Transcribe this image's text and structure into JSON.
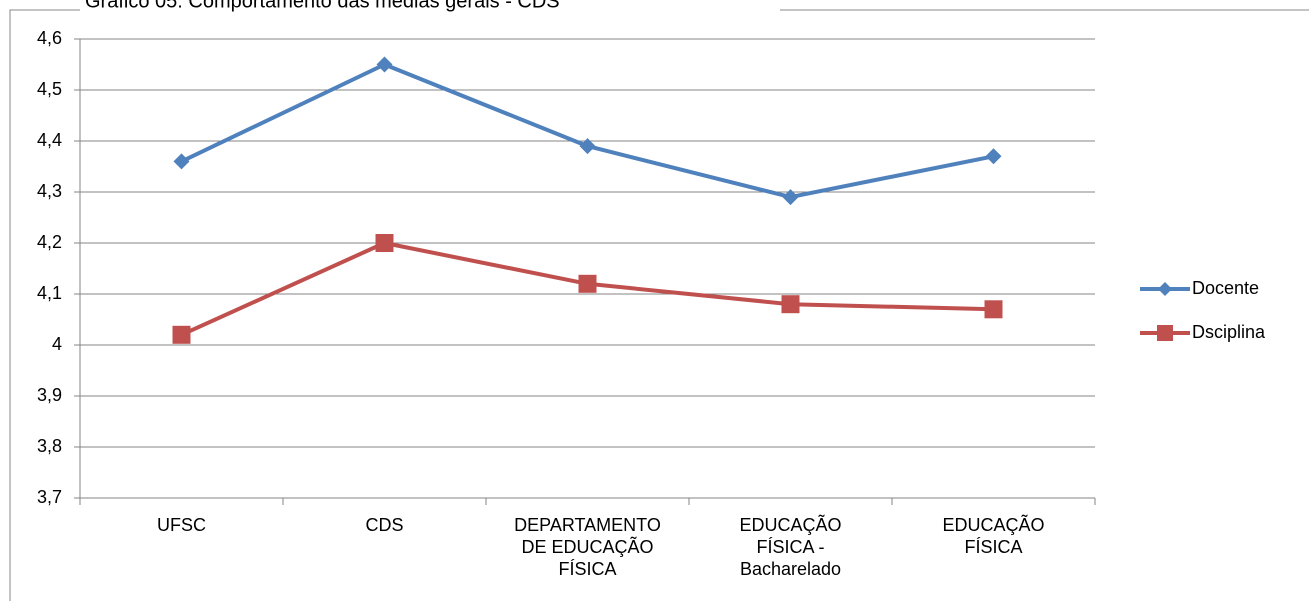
{
  "chart_data": {
    "type": "line",
    "title": "Gráfico 05: Comportamento das médias gerais - CDS",
    "categories": [
      "UFSC",
      "CDS",
      "DEPARTAMENTO DE EDUCAÇÃO FÍSICA",
      "EDUCAÇÃO FÍSICA - Bacharelado",
      "EDUCAÇÃO FÍSICA"
    ],
    "series": [
      {
        "name": "Docente",
        "color": "#4f81bd",
        "marker": "diamond",
        "values": [
          4.36,
          4.55,
          4.39,
          4.29,
          4.37
        ]
      },
      {
        "name": "Dsciplina",
        "color": "#c0504d",
        "marker": "square",
        "values": [
          4.02,
          4.2,
          4.12,
          4.08,
          4.07
        ]
      }
    ],
    "ylim": [
      3.7,
      4.6
    ],
    "yticks": [
      {
        "value": 3.7,
        "label": "3,7"
      },
      {
        "value": 3.8,
        "label": "3,8"
      },
      {
        "value": 3.9,
        "label": "3,9"
      },
      4,
      {
        "value": 4.1,
        "label": "4,1"
      },
      {
        "value": 4.2,
        "label": "4,2"
      },
      {
        "value": 4.3,
        "label": "4,3"
      },
      {
        "value": 4.4,
        "label": "4,4"
      },
      {
        "value": 4.5,
        "label": "4,5"
      },
      {
        "value": 4.6,
        "label": "4,6"
      }
    ],
    "grid": true,
    "legend": "right"
  }
}
